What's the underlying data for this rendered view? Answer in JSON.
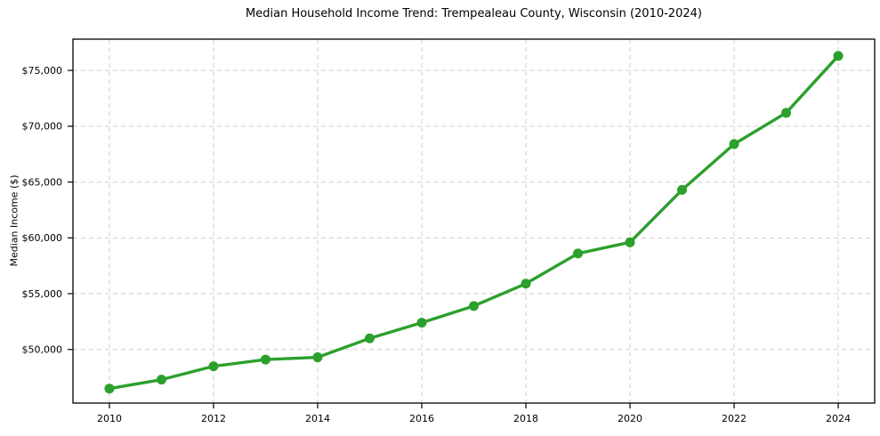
{
  "chart_data": {
    "type": "line",
    "title": "Median Household Income Trend: Trempealeau County, Wisconsin (2010-2024)",
    "xlabel": "",
    "ylabel": "Median Income ($)",
    "x": [
      2010,
      2011,
      2012,
      2013,
      2014,
      2015,
      2016,
      2017,
      2018,
      2019,
      2020,
      2021,
      2022,
      2023,
      2024
    ],
    "values": [
      46500,
      47300,
      48500,
      49100,
      49300,
      51000,
      52400,
      53900,
      55900,
      58600,
      59600,
      64300,
      68400,
      71200,
      76300
    ],
    "xlim": [
      2009.3,
      2024.7
    ],
    "ylim": [
      45200,
      77800
    ],
    "grid": true,
    "grid_style": "dashed",
    "legend": false,
    "line_color": "#2ca02c",
    "marker": "circle",
    "grid_color": "#cfcfcf",
    "frame_color": "#000000",
    "text_color": "#000000",
    "xticks": [
      {
        "value": 2010,
        "label": "2010"
      },
      {
        "value": 2012,
        "label": "2012"
      },
      {
        "value": 2014,
        "label": "2014"
      },
      {
        "value": 2016,
        "label": "2016"
      },
      {
        "value": 2018,
        "label": "2018"
      },
      {
        "value": 2020,
        "label": "2020"
      },
      {
        "value": 2022,
        "label": "2022"
      },
      {
        "value": 2024,
        "label": "2024"
      }
    ],
    "yticks": [
      {
        "value": 50000,
        "label": "$50,000"
      },
      {
        "value": 55000,
        "label": "$55,000"
      },
      {
        "value": 60000,
        "label": "$60,000"
      },
      {
        "value": 65000,
        "label": "$65,000"
      },
      {
        "value": 70000,
        "label": "$70,000"
      },
      {
        "value": 75000,
        "label": "$75,000"
      }
    ]
  }
}
